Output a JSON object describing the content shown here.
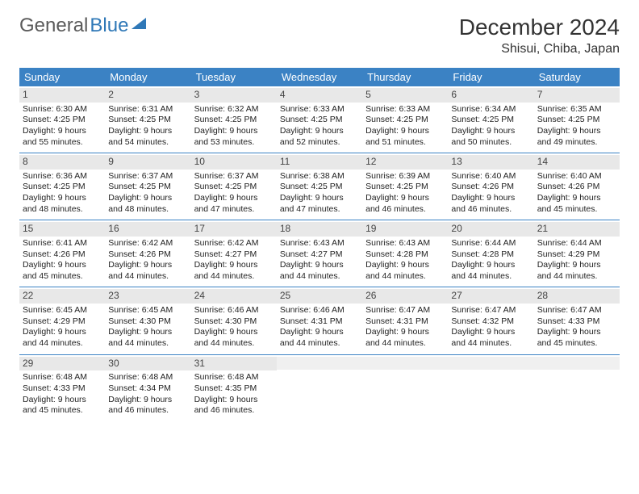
{
  "brand": {
    "part1": "General",
    "part2": "Blue"
  },
  "title": "December 2024",
  "location": "Shisui, Chiba, Japan",
  "colors": {
    "header_bg": "#3b82c4",
    "header_text": "#ffffff",
    "daynum_bg": "#e8e8e8",
    "week_border": "#3b82c4",
    "text": "#222222"
  },
  "weekdays": [
    "Sunday",
    "Monday",
    "Tuesday",
    "Wednesday",
    "Thursday",
    "Friday",
    "Saturday"
  ],
  "days": [
    {
      "n": 1,
      "sr": "6:30 AM",
      "ss": "4:25 PM",
      "dl": "9 hours and 55 minutes."
    },
    {
      "n": 2,
      "sr": "6:31 AM",
      "ss": "4:25 PM",
      "dl": "9 hours and 54 minutes."
    },
    {
      "n": 3,
      "sr": "6:32 AM",
      "ss": "4:25 PM",
      "dl": "9 hours and 53 minutes."
    },
    {
      "n": 4,
      "sr": "6:33 AM",
      "ss": "4:25 PM",
      "dl": "9 hours and 52 minutes."
    },
    {
      "n": 5,
      "sr": "6:33 AM",
      "ss": "4:25 PM",
      "dl": "9 hours and 51 minutes."
    },
    {
      "n": 6,
      "sr": "6:34 AM",
      "ss": "4:25 PM",
      "dl": "9 hours and 50 minutes."
    },
    {
      "n": 7,
      "sr": "6:35 AM",
      "ss": "4:25 PM",
      "dl": "9 hours and 49 minutes."
    },
    {
      "n": 8,
      "sr": "6:36 AM",
      "ss": "4:25 PM",
      "dl": "9 hours and 48 minutes."
    },
    {
      "n": 9,
      "sr": "6:37 AM",
      "ss": "4:25 PM",
      "dl": "9 hours and 48 minutes."
    },
    {
      "n": 10,
      "sr": "6:37 AM",
      "ss": "4:25 PM",
      "dl": "9 hours and 47 minutes."
    },
    {
      "n": 11,
      "sr": "6:38 AM",
      "ss": "4:25 PM",
      "dl": "9 hours and 47 minutes."
    },
    {
      "n": 12,
      "sr": "6:39 AM",
      "ss": "4:25 PM",
      "dl": "9 hours and 46 minutes."
    },
    {
      "n": 13,
      "sr": "6:40 AM",
      "ss": "4:26 PM",
      "dl": "9 hours and 46 minutes."
    },
    {
      "n": 14,
      "sr": "6:40 AM",
      "ss": "4:26 PM",
      "dl": "9 hours and 45 minutes."
    },
    {
      "n": 15,
      "sr": "6:41 AM",
      "ss": "4:26 PM",
      "dl": "9 hours and 45 minutes."
    },
    {
      "n": 16,
      "sr": "6:42 AM",
      "ss": "4:26 PM",
      "dl": "9 hours and 44 minutes."
    },
    {
      "n": 17,
      "sr": "6:42 AM",
      "ss": "4:27 PM",
      "dl": "9 hours and 44 minutes."
    },
    {
      "n": 18,
      "sr": "6:43 AM",
      "ss": "4:27 PM",
      "dl": "9 hours and 44 minutes."
    },
    {
      "n": 19,
      "sr": "6:43 AM",
      "ss": "4:28 PM",
      "dl": "9 hours and 44 minutes."
    },
    {
      "n": 20,
      "sr": "6:44 AM",
      "ss": "4:28 PM",
      "dl": "9 hours and 44 minutes."
    },
    {
      "n": 21,
      "sr": "6:44 AM",
      "ss": "4:29 PM",
      "dl": "9 hours and 44 minutes."
    },
    {
      "n": 22,
      "sr": "6:45 AM",
      "ss": "4:29 PM",
      "dl": "9 hours and 44 minutes."
    },
    {
      "n": 23,
      "sr": "6:45 AM",
      "ss": "4:30 PM",
      "dl": "9 hours and 44 minutes."
    },
    {
      "n": 24,
      "sr": "6:46 AM",
      "ss": "4:30 PM",
      "dl": "9 hours and 44 minutes."
    },
    {
      "n": 25,
      "sr": "6:46 AM",
      "ss": "4:31 PM",
      "dl": "9 hours and 44 minutes."
    },
    {
      "n": 26,
      "sr": "6:47 AM",
      "ss": "4:31 PM",
      "dl": "9 hours and 44 minutes."
    },
    {
      "n": 27,
      "sr": "6:47 AM",
      "ss": "4:32 PM",
      "dl": "9 hours and 44 minutes."
    },
    {
      "n": 28,
      "sr": "6:47 AM",
      "ss": "4:33 PM",
      "dl": "9 hours and 45 minutes."
    },
    {
      "n": 29,
      "sr": "6:48 AM",
      "ss": "4:33 PM",
      "dl": "9 hours and 45 minutes."
    },
    {
      "n": 30,
      "sr": "6:48 AM",
      "ss": "4:34 PM",
      "dl": "9 hours and 46 minutes."
    },
    {
      "n": 31,
      "sr": "6:48 AM",
      "ss": "4:35 PM",
      "dl": "9 hours and 46 minutes."
    }
  ],
  "labels": {
    "sunrise": "Sunrise:",
    "sunset": "Sunset:",
    "daylight": "Daylight:"
  },
  "layout": {
    "start_weekday": 0,
    "total_cells": 35
  }
}
